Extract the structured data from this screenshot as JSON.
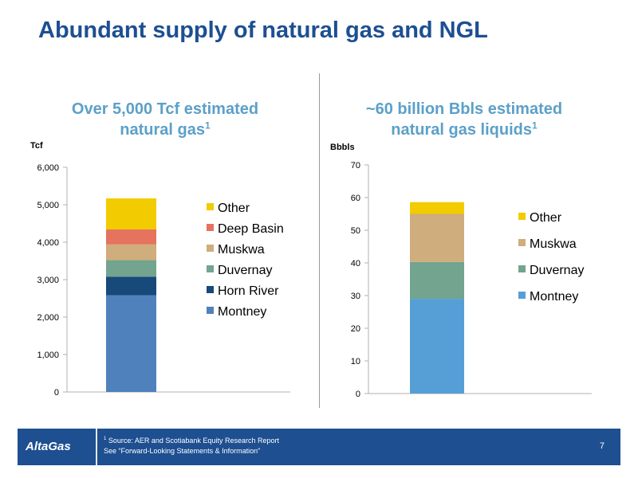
{
  "title": "Abundant supply of natural gas and NGL",
  "charts": {
    "gas": {
      "heading_line1": "Over 5,000 Tcf estimated",
      "heading_line2": "natural gas",
      "footnote_ref": "1"
    },
    "ngl": {
      "heading_line1": "~60 billion Bbls estimated",
      "heading_line2": "natural gas liquids",
      "footnote_ref": "1"
    }
  },
  "footer": {
    "logo": "AltaGas",
    "footnote_mark": "1",
    "source": "Source: AER and Scotiabank Equity Research Report",
    "disclaimer": "See “Forward-Looking Statements & Information”",
    "page_number": "7"
  },
  "chart_data": [
    {
      "type": "bar",
      "stacked": true,
      "ylabel": "Tcf",
      "ylim": [
        0,
        6000
      ],
      "yticks": [
        0,
        1000,
        2000,
        3000,
        4000,
        5000,
        6000
      ],
      "ytick_labels": [
        "0",
        "1,000",
        "2,000",
        "3,000",
        "4,000",
        "5,000",
        "6,000"
      ],
      "legend_position": "right",
      "series": [
        {
          "name": "Montney",
          "value": 2580,
          "color": "#4f81bd"
        },
        {
          "name": "Horn River",
          "value": 500,
          "color": "#17497a"
        },
        {
          "name": "Duvernay",
          "value": 440,
          "color": "#72a48f"
        },
        {
          "name": "Muskwa",
          "value": 420,
          "color": "#cfad7c"
        },
        {
          "name": "Deep Basin",
          "value": 400,
          "color": "#e5735d"
        },
        {
          "name": "Other",
          "value": 830,
          "color": "#f2cb00"
        }
      ]
    },
    {
      "type": "bar",
      "stacked": true,
      "ylabel": "Bbbls",
      "ylim": [
        0,
        70
      ],
      "yticks": [
        0,
        10,
        20,
        30,
        40,
        50,
        60,
        70
      ],
      "ytick_labels": [
        "0",
        "10",
        "20",
        "30",
        "40",
        "50",
        "60",
        "70"
      ],
      "legend_position": "right",
      "series": [
        {
          "name": "Montney",
          "value": 29,
          "color": "#569fd6"
        },
        {
          "name": "Duvernay",
          "value": 11.3,
          "color": "#72a48f"
        },
        {
          "name": "Muskwa",
          "value": 14.7,
          "color": "#cfad7c"
        },
        {
          "name": "Other",
          "value": 3.6,
          "color": "#f2cb00"
        }
      ]
    }
  ]
}
